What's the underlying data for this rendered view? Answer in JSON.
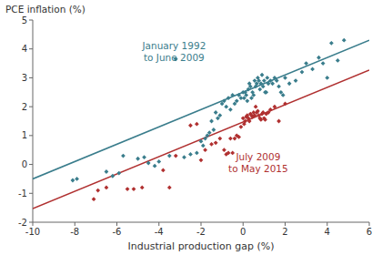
{
  "chart_data": {
    "type": "scatter",
    "xlabel": "Industrial production gap (%)",
    "ylabel": "PCE inflation (%)",
    "xlim": [
      -10,
      6
    ],
    "ylim": [
      -2,
      5
    ],
    "xticks": [
      -10,
      -8,
      -6,
      -4,
      -2,
      0,
      2,
      4,
      6
    ],
    "yticks": [
      -2,
      -1,
      0,
      1,
      2,
      3,
      4,
      5
    ],
    "grid": false,
    "series": [
      {
        "type": "scatter",
        "marker": "diamond",
        "color": "#3a7d8c",
        "x": [
          -8.1,
          -7.9,
          -6.5,
          -6.2,
          -5.9,
          -5.7,
          -5.0,
          -4.7,
          -4.5,
          -4.2,
          -4.0,
          -3.5,
          -3.2,
          -2.8,
          -2.5,
          -2.2,
          -2.0,
          -1.9,
          -1.8,
          -1.7,
          -1.6,
          -1.5,
          -1.4,
          -1.3,
          -1.2,
          -1.1,
          -1.0,
          -0.9,
          -0.8,
          -0.7,
          -0.6,
          -0.5,
          -0.4,
          -0.3,
          -0.2,
          -0.1,
          0.0,
          0.05,
          0.1,
          0.15,
          0.2,
          0.25,
          0.3,
          0.35,
          0.4,
          0.45,
          0.5,
          0.55,
          0.6,
          0.65,
          0.7,
          0.75,
          0.8,
          0.85,
          0.9,
          0.95,
          1.0,
          1.05,
          1.1,
          1.15,
          1.2,
          1.3,
          1.4,
          1.5,
          1.6,
          1.7,
          1.8,
          1.9,
          2.0,
          2.2,
          2.5,
          2.8,
          3.0,
          3.3,
          3.6,
          3.8,
          4.0,
          4.2,
          4.5,
          4.8
        ],
        "values": [
          -0.55,
          -0.5,
          -0.25,
          -0.4,
          -0.3,
          0.3,
          0.2,
          0.25,
          0.05,
          -0.05,
          0.1,
          0.3,
          3.65,
          0.25,
          0.35,
          0.4,
          0.8,
          0.65,
          0.9,
          1.0,
          1.1,
          1.5,
          1.2,
          1.8,
          1.6,
          1.7,
          2.1,
          2.2,
          2.0,
          2.3,
          1.9,
          2.4,
          2.1,
          2.2,
          2.4,
          2.3,
          2.5,
          2.3,
          2.5,
          2.4,
          2.2,
          2.6,
          2.8,
          2.7,
          2.3,
          2.5,
          2.4,
          2.9,
          2.7,
          2.8,
          3.0,
          2.9,
          2.6,
          2.8,
          3.1,
          2.7,
          2.9,
          2.5,
          2.5,
          3.0,
          2.8,
          2.9,
          2.8,
          3.0,
          2.9,
          2.7,
          2.5,
          2.4,
          3.0,
          2.8,
          2.9,
          3.2,
          3.5,
          3.3,
          3.7,
          3.5,
          3.0,
          4.2,
          3.6,
          4.3
        ]
      },
      {
        "type": "scatter",
        "marker": "diamond",
        "color": "#b03030",
        "x": [
          -7.1,
          -6.9,
          -6.5,
          -5.5,
          -5.2,
          -4.8,
          -3.8,
          -3.5,
          -3.2,
          -2.5,
          -2.2,
          -2.0,
          -1.8,
          -1.5,
          -1.3,
          -1.1,
          -0.9,
          -0.8,
          -0.7,
          -0.6,
          -0.5,
          -0.4,
          -0.3,
          -0.2,
          -0.1,
          0.0,
          0.05,
          0.1,
          0.15,
          0.2,
          0.25,
          0.3,
          0.35,
          0.4,
          0.45,
          0.5,
          0.55,
          0.6,
          0.65,
          0.7,
          0.75,
          0.8,
          0.85,
          0.9,
          0.95,
          1.0,
          1.05,
          1.1,
          1.2,
          1.3,
          1.5,
          1.7,
          2.0
        ],
        "values": [
          -1.2,
          -0.9,
          -0.8,
          -0.85,
          -0.85,
          -0.8,
          -0.2,
          -0.8,
          0.3,
          1.35,
          1.4,
          0.15,
          0.5,
          0.7,
          0.75,
          0.9,
          0.5,
          0.35,
          0.4,
          0.9,
          0.4,
          0.9,
          1.0,
          0.95,
          1.3,
          1.6,
          1.4,
          1.5,
          1.65,
          1.7,
          1.6,
          1.5,
          1.75,
          1.7,
          1.65,
          1.8,
          1.7,
          2.0,
          1.8,
          1.85,
          1.7,
          1.6,
          1.55,
          1.75,
          1.8,
          1.6,
          1.55,
          1.75,
          1.8,
          1.9,
          2.0,
          1.5,
          2.1
        ]
      },
      {
        "type": "line",
        "line_style": "solid",
        "color": "#3a7d8c",
        "x": [
          -10,
          6
        ],
        "values": [
          -0.5,
          4.3
        ]
      },
      {
        "type": "line",
        "line_style": "solid",
        "color": "#b03030",
        "x": [
          -10,
          6
        ],
        "values": [
          -1.53,
          3.27
        ]
      }
    ],
    "annotations": [
      {
        "text": "January 1992\nto June 2009",
        "color": "#3a7d8c"
      },
      {
        "text": "July 2009\nto May 2015",
        "color": "#b03030"
      }
    ]
  }
}
